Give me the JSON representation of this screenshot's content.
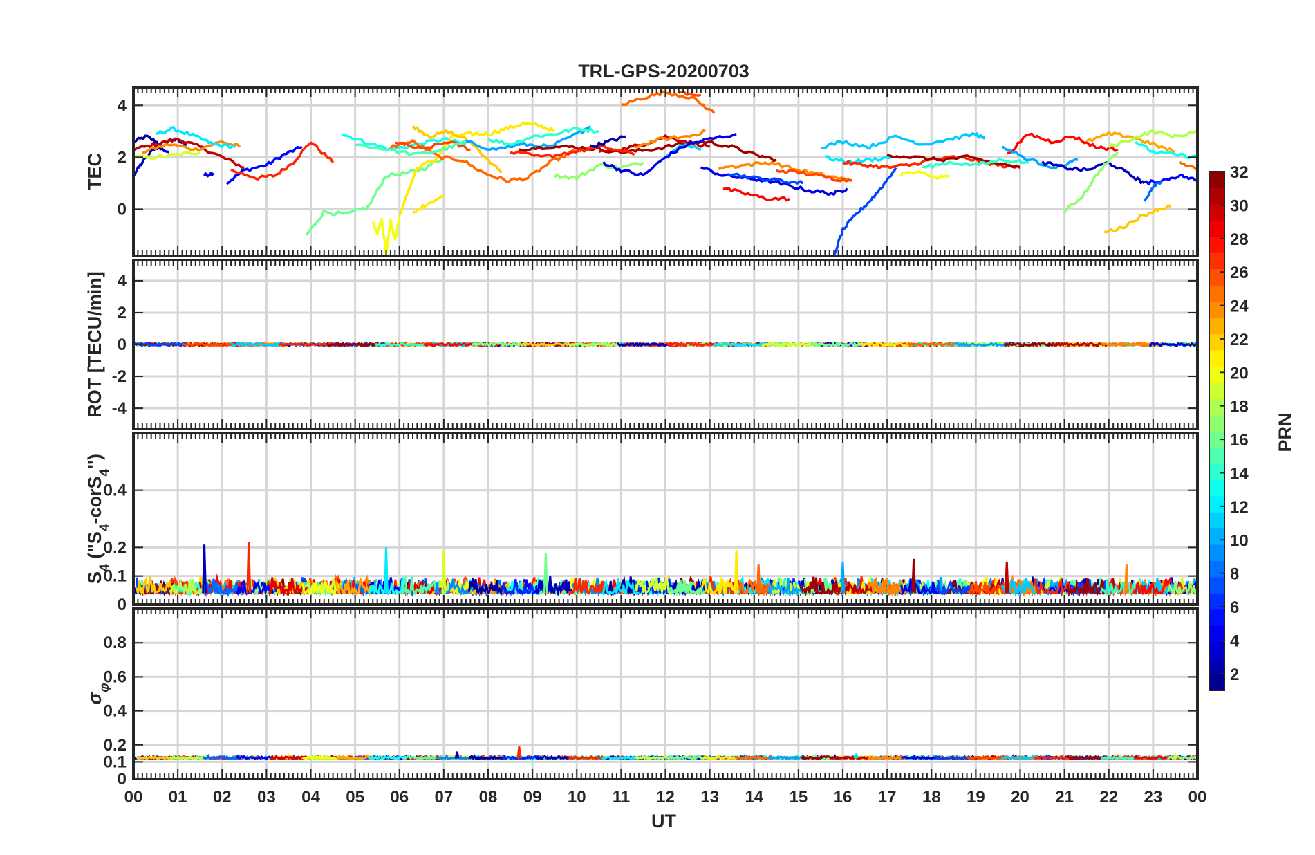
{
  "figure": {
    "title": "TRL-GPS-20200703",
    "xlabel": "UT"
  },
  "colors": {
    "axis": "#262626",
    "grid": "#d6d6d6",
    "background": "#ffffff"
  },
  "colorbar": {
    "label": "PRN",
    "colormap": "jet",
    "range": [
      1,
      32
    ],
    "levels": 32,
    "tick_values": [
      2,
      4,
      6,
      8,
      10,
      12,
      14,
      16,
      18,
      20,
      22,
      24,
      26,
      28,
      30,
      32
    ],
    "tick_labels": [
      "2",
      "4",
      "6",
      "8",
      "10",
      "12",
      "14",
      "16",
      "18",
      "20",
      "22",
      "24",
      "26",
      "28",
      "30",
      "32"
    ]
  },
  "x_axis": {
    "range": [
      0,
      24
    ],
    "tick_values": [
      0,
      1,
      2,
      3,
      4,
      5,
      6,
      7,
      8,
      9,
      10,
      11,
      12,
      13,
      14,
      15,
      16,
      17,
      18,
      19,
      20,
      21,
      22,
      23,
      24
    ],
    "tick_labels": [
      "00",
      "01",
      "02",
      "03",
      "04",
      "05",
      "06",
      "07",
      "08",
      "09",
      "10",
      "11",
      "12",
      "13",
      "14",
      "15",
      "16",
      "17",
      "18",
      "19",
      "20",
      "21",
      "22",
      "23",
      "00"
    ]
  },
  "chart_data": [
    {
      "type": "line",
      "ylabel": "TEC",
      "ylim": [
        -1.8,
        4.7
      ],
      "yticks": [
        0,
        2,
        4
      ],
      "yticklabels": [
        "0",
        "2",
        "4"
      ],
      "grid": true,
      "series": [
        {
          "prn": 2,
          "x": [
            0.0,
            0.3,
            0.6,
            0.9,
            1.2
          ],
          "y": [
            2.6,
            2.8,
            2.5,
            2.7,
            2.5
          ]
        },
        {
          "prn": 3,
          "x": [
            0.0,
            0.2,
            0.5,
            0.8
          ],
          "y": [
            1.3,
            1.8,
            2.4,
            2.2
          ]
        },
        {
          "prn": 4,
          "x": [
            1.6,
            1.8
          ],
          "y": [
            1.3,
            1.4
          ]
        },
        {
          "prn": 5,
          "x": [
            2.1,
            2.5,
            3.0,
            3.4,
            3.8
          ],
          "y": [
            1.0,
            1.5,
            1.7,
            2.1,
            2.4
          ]
        },
        {
          "prn": 30,
          "x": [
            0.0,
            0.5,
            1.0,
            1.5,
            2.0,
            2.5
          ],
          "y": [
            2.3,
            2.5,
            2.7,
            2.4,
            2.0,
            1.6
          ]
        },
        {
          "prn": 27,
          "x": [
            2.2,
            2.8,
            3.2,
            3.6,
            4.0,
            4.5
          ],
          "y": [
            1.5,
            1.2,
            1.3,
            1.8,
            2.6,
            1.8
          ]
        },
        {
          "prn": 24,
          "x": [
            0.2,
            0.8,
            1.4,
            2.0,
            2.4
          ],
          "y": [
            2.2,
            2.5,
            2.3,
            2.6,
            2.4
          ]
        },
        {
          "prn": 12,
          "x": [
            0.5,
            0.9,
            1.4,
            1.8,
            2.3
          ],
          "y": [
            2.9,
            3.1,
            2.8,
            2.5,
            2.4
          ]
        },
        {
          "prn": 19,
          "x": [
            0.0,
            0.5,
            1.0,
            1.5
          ],
          "y": [
            2.0,
            2.0,
            2.1,
            2.2
          ]
        },
        {
          "prn": 13,
          "x": [
            4.7,
            5.2,
            5.8,
            6.4,
            7.0,
            7.5
          ],
          "y": [
            2.9,
            2.6,
            2.3,
            2.5,
            2.7,
            2.5
          ]
        },
        {
          "prn": 16,
          "x": [
            3.9,
            4.3,
            4.8,
            5.3,
            5.7,
            6.2,
            6.6,
            7.0
          ],
          "y": [
            -1.0,
            -0.1,
            -0.2,
            0.1,
            1.3,
            1.4,
            1.6,
            2.0
          ]
        },
        {
          "prn": 20,
          "x": [
            5.4,
            5.5,
            5.6,
            5.7,
            5.8,
            5.9,
            6.0
          ],
          "y": [
            -0.5,
            -0.9,
            -0.4,
            -1.7,
            -0.4,
            -1.2,
            -0.3
          ]
        },
        {
          "prn": 21,
          "x": [
            6.0,
            6.4,
            6.8,
            7.2,
            7.6,
            8.0,
            8.4,
            8.8,
            9.2,
            9.5
          ],
          "y": [
            -0.2,
            1.6,
            1.9,
            2.8,
            2.9,
            2.9,
            3.1,
            3.3,
            3.2,
            3.0
          ]
        },
        {
          "prn": 21,
          "x": [
            6.3,
            6.6,
            7.0
          ],
          "y": [
            -0.2,
            0.2,
            0.5
          ]
        },
        {
          "prn": 22,
          "x": [
            6.3,
            6.7,
            7.1,
            7.6,
            8.0,
            8.3
          ],
          "y": [
            3.2,
            2.8,
            3.0,
            2.6,
            1.9,
            1.4
          ]
        },
        {
          "prn": 25,
          "x": [
            5.8,
            6.3,
            6.9,
            7.4,
            7.9,
            8.4,
            8.9,
            9.4,
            9.9,
            10.4
          ],
          "y": [
            2.4,
            2.6,
            2.0,
            1.9,
            1.4,
            1.1,
            1.2,
            1.8,
            2.2,
            2.4
          ]
        },
        {
          "prn": 26,
          "x": [
            5.9,
            6.5,
            7.1,
            7.6
          ],
          "y": [
            2.6,
            2.3,
            2.6,
            2.3
          ]
        },
        {
          "prn": 15,
          "x": [
            5.0,
            5.7,
            6.4,
            7.0,
            7.5
          ],
          "y": [
            2.5,
            2.3,
            2.1,
            2.3,
            2.6
          ]
        },
        {
          "prn": 10,
          "x": [
            7.5,
            8.1,
            8.8,
            9.4,
            10.0,
            10.3
          ],
          "y": [
            2.6,
            2.3,
            2.5,
            2.4,
            2.9,
            3.2
          ]
        },
        {
          "prn": 14,
          "x": [
            8.0,
            8.5,
            9.0,
            9.5,
            10.0,
            10.5
          ],
          "y": [
            2.7,
            2.5,
            2.8,
            2.9,
            3.1,
            3.0
          ]
        },
        {
          "prn": 17,
          "x": [
            9.5,
            10.0,
            10.5,
            11.0,
            11.5
          ],
          "y": [
            1.3,
            1.2,
            1.7,
            1.6,
            1.8
          ]
        },
        {
          "prn": 31,
          "x": [
            8.7,
            9.3,
            9.9,
            10.5,
            11.1,
            11.7,
            12.3,
            12.9,
            13.5,
            14.0,
            14.5
          ],
          "y": [
            2.3,
            2.4,
            2.4,
            2.3,
            2.2,
            2.3,
            2.5,
            2.6,
            2.4,
            2.1,
            1.9
          ]
        },
        {
          "prn": 30,
          "x": [
            10.5,
            11.0,
            11.5,
            12.0,
            12.5,
            13.0
          ],
          "y": [
            2.2,
            2.3,
            2.5,
            2.8,
            2.6,
            2.4
          ]
        },
        {
          "prn": 27,
          "x": [
            8.5,
            9.2,
            9.9,
            10.6,
            11.3
          ],
          "y": [
            2.2,
            2.0,
            2.2,
            2.4,
            2.1
          ]
        },
        {
          "prn": 24,
          "x": [
            11.3,
            11.9,
            12.5,
            12.9
          ],
          "y": [
            2.4,
            2.7,
            2.8,
            3.0
          ]
        },
        {
          "prn": 11,
          "x": [
            12.0,
            12.4,
            12.8
          ],
          "y": [
            2.0,
            2.5,
            2.3
          ]
        },
        {
          "prn": 4,
          "x": [
            10.6,
            11.0,
            11.5,
            12.0,
            12.5,
            13.0,
            13.6
          ],
          "y": [
            1.8,
            1.5,
            1.3,
            2.0,
            2.5,
            2.7,
            2.9
          ]
        },
        {
          "prn": 2,
          "x": [
            10.3,
            10.7,
            11.1
          ],
          "y": [
            2.4,
            2.6,
            2.8
          ]
        },
        {
          "prn": 25,
          "x": [
            11.0,
            11.5,
            12.0,
            12.6,
            13.1
          ],
          "y": [
            4.0,
            4.3,
            4.5,
            4.3,
            3.7
          ]
        },
        {
          "prn": 26,
          "x": [
            12.3,
            12.8
          ],
          "y": [
            4.5,
            4.4
          ]
        },
        {
          "prn": 28,
          "x": [
            13.3,
            13.8,
            14.3,
            14.8
          ],
          "y": [
            0.8,
            0.6,
            0.4,
            0.4
          ]
        },
        {
          "prn": 4,
          "x": [
            12.8,
            13.3,
            13.8,
            14.3,
            14.8,
            15.3,
            15.8,
            16.1
          ],
          "y": [
            1.6,
            1.3,
            1.2,
            1.1,
            0.9,
            0.7,
            0.6,
            0.8
          ]
        },
        {
          "prn": 7,
          "x": [
            13.4,
            14.0,
            14.6,
            15.1
          ],
          "y": [
            1.4,
            1.2,
            1.1,
            1.0
          ]
        },
        {
          "prn": 24,
          "x": [
            13.2,
            13.8,
            14.4,
            15.0,
            15.6,
            16.2
          ],
          "y": [
            1.6,
            1.7,
            1.8,
            1.5,
            1.3,
            1.1
          ]
        },
        {
          "prn": 26,
          "x": [
            14.5,
            15.1,
            15.7,
            16.2
          ],
          "y": [
            1.5,
            1.4,
            1.2,
            1.1
          ]
        },
        {
          "prn": 11,
          "x": [
            15.5,
            16.0,
            16.6,
            17.2,
            17.8,
            18.4,
            19.0,
            19.2
          ],
          "y": [
            2.4,
            2.6,
            2.4,
            2.8,
            2.5,
            2.7,
            2.9,
            2.7
          ]
        },
        {
          "prn": 7,
          "x": [
            15.8,
            16.0,
            16.3,
            16.6,
            16.9,
            17.2
          ],
          "y": [
            -1.8,
            -0.8,
            -0.2,
            0.3,
            0.9,
            1.6
          ]
        },
        {
          "prn": 12,
          "x": [
            15.6,
            16.1,
            16.6,
            17.1
          ],
          "y": [
            2.0,
            1.8,
            1.9,
            2.0
          ]
        },
        {
          "prn": 27,
          "x": [
            16.0,
            16.5,
            17.0,
            17.5,
            18.0,
            18.5,
            19.0,
            19.5,
            20.0
          ],
          "y": [
            1.8,
            1.7,
            1.6,
            1.7,
            1.9,
            2.0,
            1.9,
            1.7,
            1.6
          ]
        },
        {
          "prn": 31,
          "x": [
            17.0,
            17.6,
            18.2,
            18.8,
            19.4,
            20.0
          ],
          "y": [
            2.1,
            2.0,
            1.9,
            2.0,
            1.8,
            1.6
          ]
        },
        {
          "prn": 20,
          "x": [
            17.3,
            17.7,
            18.1,
            18.4
          ],
          "y": [
            1.3,
            1.5,
            1.2,
            1.3
          ]
        },
        {
          "prn": 14,
          "x": [
            17.8,
            18.4,
            19.0,
            19.6,
            20.2
          ],
          "y": [
            1.6,
            1.8,
            1.7,
            1.9,
            1.8
          ]
        },
        {
          "prn": 28,
          "x": [
            19.7,
            20.2,
            20.7,
            21.2,
            21.7,
            22.2
          ],
          "y": [
            2.1,
            2.9,
            2.6,
            2.8,
            2.4,
            2.3
          ]
        },
        {
          "prn": 10,
          "x": [
            19.6,
            20.2,
            20.8,
            21.3
          ],
          "y": [
            2.4,
            1.9,
            1.6,
            1.9
          ]
        },
        {
          "prn": 3,
          "x": [
            20.5,
            21.0,
            21.5,
            22.0,
            22.5,
            22.8
          ],
          "y": [
            1.8,
            1.6,
            1.5,
            1.8,
            1.3,
            1.0
          ]
        },
        {
          "prn": 17,
          "x": [
            21.0,
            21.4,
            21.8,
            22.2
          ],
          "y": [
            -0.1,
            0.5,
            1.5,
            2.2
          ]
        },
        {
          "prn": 22,
          "x": [
            21.9,
            22.3,
            22.7,
            23.1,
            23.4
          ],
          "y": [
            -0.9,
            -0.7,
            -0.3,
            0.0,
            0.1
          ]
        },
        {
          "prn": 23,
          "x": [
            21.5,
            22.0,
            22.5,
            23.0,
            23.5
          ],
          "y": [
            2.6,
            2.9,
            2.8,
            2.5,
            2.2
          ]
        },
        {
          "prn": 18,
          "x": [
            22.0,
            22.5,
            23.0,
            23.5,
            24.0
          ],
          "y": [
            2.4,
            2.7,
            3.0,
            2.8,
            3.0
          ]
        },
        {
          "prn": 5,
          "x": [
            22.8,
            23.2,
            23.6,
            24.0
          ],
          "y": [
            1.0,
            1.1,
            1.3,
            1.1
          ]
        },
        {
          "prn": 8,
          "x": [
            22.8,
            23.0,
            23.2
          ],
          "y": [
            0.3,
            0.9,
            1.1
          ]
        },
        {
          "prn": 13,
          "x": [
            22.6,
            23.0,
            23.5,
            24.0
          ],
          "y": [
            2.6,
            2.2,
            2.1,
            2.0
          ]
        },
        {
          "prn": 25,
          "x": [
            23.6,
            24.0
          ],
          "y": [
            1.8,
            1.5
          ]
        }
      ]
    },
    {
      "type": "line",
      "ylabel": "ROT [TECU/min]",
      "ylim": [
        -5.3,
        5.3
      ],
      "yticks": [
        -4,
        -2,
        0,
        2,
        4
      ],
      "yticklabels": [
        "-4",
        "-2",
        "0",
        "2",
        "4"
      ],
      "grid": true,
      "trace": {
        "baseline": 0,
        "amplitude": 0.08,
        "segments_prn": [
          3,
          27,
          12,
          19,
          16,
          21,
          25,
          10,
          31,
          30,
          24,
          4,
          7,
          26,
          11,
          27,
          31,
          14,
          28,
          17,
          22,
          18
        ]
      }
    },
    {
      "type": "line",
      "ylabel": "S_4 (\"S_4-corS_4\")",
      "ylim": [
        0,
        0.6
      ],
      "yticks": [
        0,
        0.1,
        0.2,
        0.4
      ],
      "yticklabels": [
        "0",
        "0.1",
        "0.2",
        "0.4"
      ],
      "grid": true,
      "trace": {
        "baseline": 0.04,
        "amplitude": 0.06,
        "peaks": [
          [
            1.6,
            0.21
          ],
          [
            2.6,
            0.22
          ],
          [
            5.7,
            0.2
          ],
          [
            7.0,
            0.19
          ],
          [
            9.3,
            0.18
          ],
          [
            13.6,
            0.19
          ],
          [
            14.1,
            0.14
          ],
          [
            16.0,
            0.15
          ],
          [
            17.6,
            0.16
          ],
          [
            19.7,
            0.15
          ],
          [
            22.4,
            0.14
          ]
        ]
      }
    },
    {
      "type": "line",
      "ylabel": "σ_φ",
      "ylim": [
        0,
        1.0
      ],
      "yticks": [
        0,
        0.1,
        0.2,
        0.4,
        0.6,
        0.8
      ],
      "yticklabels": [
        "0",
        "0.1",
        "0.2",
        "0.4",
        "0.6",
        "0.8"
      ],
      "grid": true,
      "trace": {
        "baseline": 0.12,
        "amplitude": 0.015,
        "peaks": [
          [
            7.3,
            0.16
          ],
          [
            8.7,
            0.19
          ],
          [
            16.3,
            0.14
          ],
          [
            23.5,
            0.14
          ]
        ]
      }
    }
  ]
}
